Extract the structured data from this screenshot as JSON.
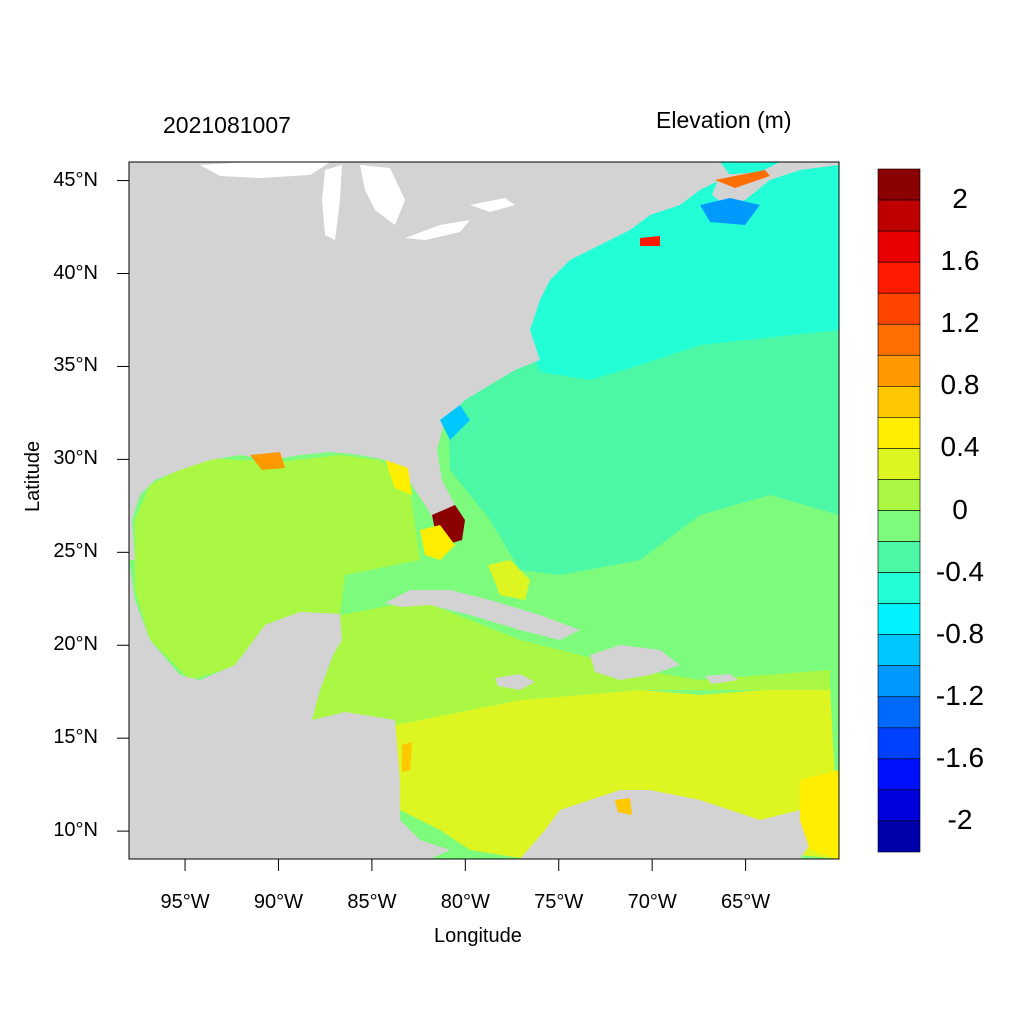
{
  "figure": {
    "date_label": "2021081007",
    "units_label": "Elevation (m)",
    "x_title": "Longitude",
    "y_title": "Latitude"
  },
  "axes": {
    "lon_range": [
      -98,
      -60
    ],
    "lat_range": [
      8.5,
      46
    ],
    "x_ticks": [
      {
        "value": -95,
        "label": "95°W"
      },
      {
        "value": -90,
        "label": "90°W"
      },
      {
        "value": -85,
        "label": "85°W"
      },
      {
        "value": -80,
        "label": "80°W"
      },
      {
        "value": -75,
        "label": "75°W"
      },
      {
        "value": -70,
        "label": "70°W"
      },
      {
        "value": -65,
        "label": "65°W"
      }
    ],
    "y_ticks": [
      {
        "value": 45,
        "label": "45°N"
      },
      {
        "value": 40,
        "label": "40°N"
      },
      {
        "value": 35,
        "label": "35°N"
      },
      {
        "value": 30,
        "label": "30°N"
      },
      {
        "value": 25,
        "label": "25°N"
      },
      {
        "value": 20,
        "label": "20°N"
      },
      {
        "value": 15,
        "label": "15°N"
      },
      {
        "value": 10,
        "label": "10°N"
      }
    ]
  },
  "colorbar": {
    "colors_top_to_bottom": [
      "#8b0000",
      "#be0000",
      "#e80000",
      "#ff1a00",
      "#ff4400",
      "#ff6e00",
      "#ff9900",
      "#ffc800",
      "#ffee00",
      "#ddf520",
      "#aaf844",
      "#7dfb7d",
      "#4cf8a6",
      "#22ffd6",
      "#00f2ff",
      "#00c8ff",
      "#009aff",
      "#006aff",
      "#0040ff",
      "#0010ff",
      "#0000dd",
      "#0000aa"
    ],
    "tick_labels": [
      {
        "label": "2",
        "level": 0
      },
      {
        "label": "1.6",
        "level": 2
      },
      {
        "label": "1.2",
        "level": 4
      },
      {
        "label": "0.8",
        "level": 6
      },
      {
        "label": "0.4",
        "level": 8
      },
      {
        "label": "0",
        "level": 10
      },
      {
        "label": "-0.4",
        "level": 12
      },
      {
        "label": "-0.8",
        "level": 14
      },
      {
        "label": "-1.2",
        "level": 16
      },
      {
        "label": "-1.6",
        "level": 18
      },
      {
        "label": "-2",
        "level": 20
      }
    ]
  },
  "map_colors": {
    "land": "#d3d3d3",
    "lakes": "#ffffff",
    "atlantic_north": "#22ffd6",
    "atlantic_mid": "#4cf8a6",
    "atlantic_south": "#7dfb7d",
    "gulf": "#aaf844",
    "caribbean": "#ddf520",
    "coastal_surge": "#8b0000"
  }
}
